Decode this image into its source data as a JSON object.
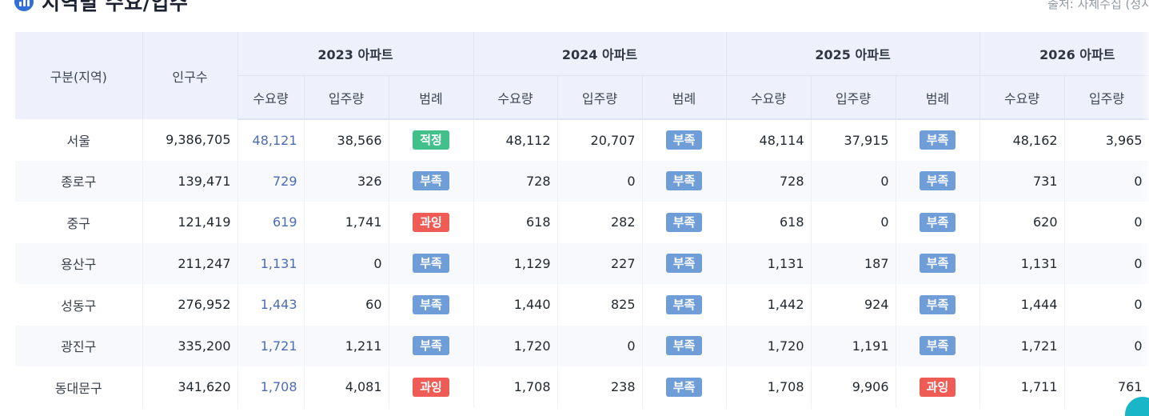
{
  "header": {
    "title": "지역별 수요/입주",
    "source": "출처: 자체수집 (정시"
  },
  "table": {
    "col_region": "구분(지역)",
    "col_population": "인구수",
    "years": [
      "2023 아파트",
      "2024 아파트",
      "2025 아파트",
      "2026 아파트"
    ],
    "sub_demand": "수요량",
    "sub_supply": "입주량",
    "sub_legend": "범례",
    "rows": [
      {
        "region": "서울",
        "pop": "9,386,705",
        "d23": "48,121",
        "s23": "38,566",
        "l23": "적정",
        "l23_kind": "ok",
        "d24": "48,112",
        "s24": "20,707",
        "l24": "부족",
        "l24_kind": "short",
        "d25": "48,114",
        "s25": "37,915",
        "l25": "부족",
        "l25_kind": "short",
        "d26": "48,162",
        "s26": "3,965"
      },
      {
        "region": "종로구",
        "pop": "139,471",
        "d23": "729",
        "s23": "326",
        "l23": "부족",
        "l23_kind": "short",
        "d24": "728",
        "s24": "0",
        "l24": "부족",
        "l24_kind": "short",
        "d25": "728",
        "s25": "0",
        "l25": "부족",
        "l25_kind": "short",
        "d26": "731",
        "s26": "0"
      },
      {
        "region": "중구",
        "pop": "121,419",
        "d23": "619",
        "s23": "1,741",
        "l23": "과잉",
        "l23_kind": "over",
        "d24": "618",
        "s24": "282",
        "l24": "부족",
        "l24_kind": "short",
        "d25": "618",
        "s25": "0",
        "l25": "부족",
        "l25_kind": "short",
        "d26": "620",
        "s26": "0"
      },
      {
        "region": "용산구",
        "pop": "211,247",
        "d23": "1,131",
        "s23": "0",
        "l23": "부족",
        "l23_kind": "short",
        "d24": "1,129",
        "s24": "227",
        "l24": "부족",
        "l24_kind": "short",
        "d25": "1,131",
        "s25": "187",
        "l25": "부족",
        "l25_kind": "short",
        "d26": "1,131",
        "s26": "0"
      },
      {
        "region": "성동구",
        "pop": "276,952",
        "d23": "1,443",
        "s23": "60",
        "l23": "부족",
        "l23_kind": "short",
        "d24": "1,440",
        "s24": "825",
        "l24": "부족",
        "l24_kind": "short",
        "d25": "1,442",
        "s25": "924",
        "l25": "부족",
        "l25_kind": "short",
        "d26": "1,444",
        "s26": "0"
      },
      {
        "region": "광진구",
        "pop": "335,200",
        "d23": "1,721",
        "s23": "1,211",
        "l23": "부족",
        "l23_kind": "short",
        "d24": "1,720",
        "s24": "0",
        "l24": "부족",
        "l24_kind": "short",
        "d25": "1,720",
        "s25": "1,191",
        "l25": "부족",
        "l25_kind": "short",
        "d26": "1,721",
        "s26": "0"
      },
      {
        "region": "동대문구",
        "pop": "341,620",
        "d23": "1,708",
        "s23": "4,081",
        "l23": "과잉",
        "l23_kind": "over",
        "d24": "1,708",
        "s24": "238",
        "l24": "부족",
        "l24_kind": "short",
        "d25": "1,708",
        "s25": "9,906",
        "l25": "과잉",
        "l25_kind": "over",
        "d26": "1,711",
        "s26": "761"
      }
    ]
  },
  "colors": {
    "header_bg": "#eef1fb",
    "short": "#6f9dd8",
    "ok": "#41c08c",
    "over": "#ef5b55",
    "accent": "#2f6fd6"
  }
}
